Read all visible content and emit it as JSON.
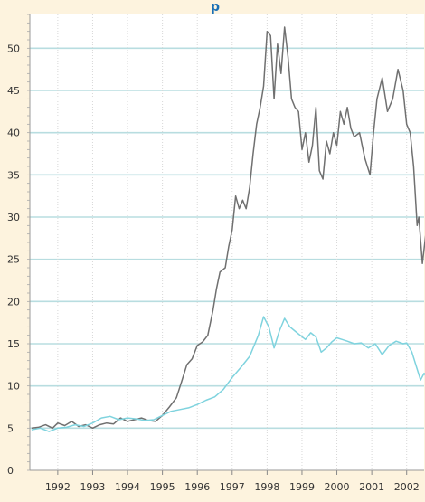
{
  "chart_data": {
    "type": "line",
    "title": "p",
    "xlabel": "",
    "ylabel": "",
    "xlim": [
      1991.2,
      2002.5
    ],
    "ylim": [
      0,
      54
    ],
    "x_ticks": [
      1992,
      1993,
      1994,
      1995,
      1996,
      1997,
      1998,
      1999,
      2000,
      2001,
      2002
    ],
    "y_ticks": [
      0,
      5,
      10,
      15,
      20,
      25,
      30,
      35,
      40,
      45,
      50
    ],
    "grid": true,
    "colors": {
      "background": "#fdf3de",
      "plot_background": "#ffffff",
      "grid": "#b8dde0",
      "series_dark": "#707070",
      "series_light": "#7fd3de",
      "title": "#1a6fb5"
    },
    "series": [
      {
        "color": "#707070",
        "points": [
          [
            1991.25,
            5.0
          ],
          [
            1991.45,
            5.1
          ],
          [
            1991.65,
            5.4
          ],
          [
            1991.85,
            5.0
          ],
          [
            1992.0,
            5.6
          ],
          [
            1992.2,
            5.3
          ],
          [
            1992.4,
            5.8
          ],
          [
            1992.6,
            5.2
          ],
          [
            1992.8,
            5.4
          ],
          [
            1993.0,
            5.0
          ],
          [
            1993.2,
            5.4
          ],
          [
            1993.4,
            5.6
          ],
          [
            1993.6,
            5.5
          ],
          [
            1993.8,
            6.2
          ],
          [
            1994.0,
            5.8
          ],
          [
            1994.2,
            6.0
          ],
          [
            1994.4,
            6.2
          ],
          [
            1994.6,
            5.9
          ],
          [
            1994.8,
            5.8
          ],
          [
            1995.0,
            6.5
          ],
          [
            1995.2,
            7.5
          ],
          [
            1995.4,
            8.6
          ],
          [
            1995.55,
            10.5
          ],
          [
            1995.7,
            12.5
          ],
          [
            1995.85,
            13.2
          ],
          [
            1996.0,
            14.8
          ],
          [
            1996.15,
            15.2
          ],
          [
            1996.3,
            16.0
          ],
          [
            1996.45,
            19.0
          ],
          [
            1996.55,
            21.5
          ],
          [
            1996.65,
            23.5
          ],
          [
            1996.8,
            24.0
          ],
          [
            1996.9,
            26.5
          ],
          [
            1997.0,
            28.5
          ],
          [
            1997.1,
            32.5
          ],
          [
            1997.2,
            31.0
          ],
          [
            1997.3,
            32.0
          ],
          [
            1997.4,
            31.0
          ],
          [
            1997.5,
            33.5
          ],
          [
            1997.6,
            37.5
          ],
          [
            1997.7,
            41.0
          ],
          [
            1997.8,
            43.0
          ],
          [
            1997.9,
            45.5
          ],
          [
            1998.0,
            52.0
          ],
          [
            1998.1,
            51.5
          ],
          [
            1998.2,
            44.0
          ],
          [
            1998.3,
            50.5
          ],
          [
            1998.4,
            47.0
          ],
          [
            1998.5,
            52.5
          ],
          [
            1998.6,
            49.0
          ],
          [
            1998.7,
            44.0
          ],
          [
            1998.8,
            43.0
          ],
          [
            1998.9,
            42.5
          ],
          [
            1999.0,
            38.0
          ],
          [
            1999.1,
            40.0
          ],
          [
            1999.2,
            36.5
          ],
          [
            1999.3,
            38.5
          ],
          [
            1999.4,
            43.0
          ],
          [
            1999.5,
            35.5
          ],
          [
            1999.6,
            34.5
          ],
          [
            1999.7,
            39.0
          ],
          [
            1999.8,
            37.5
          ],
          [
            1999.9,
            40.0
          ],
          [
            2000.0,
            38.5
          ],
          [
            2000.1,
            42.5
          ],
          [
            2000.2,
            41.0
          ],
          [
            2000.3,
            43.0
          ],
          [
            2000.4,
            40.5
          ],
          [
            2000.5,
            39.5
          ],
          [
            2000.65,
            40.0
          ],
          [
            2000.8,
            37.0
          ],
          [
            2000.95,
            35.0
          ],
          [
            2001.05,
            40.0
          ],
          [
            2001.15,
            44.0
          ],
          [
            2001.3,
            46.5
          ],
          [
            2001.45,
            42.5
          ],
          [
            2001.6,
            44.0
          ],
          [
            2001.75,
            47.5
          ],
          [
            2001.9,
            45.0
          ],
          [
            2002.0,
            41.0
          ],
          [
            2002.1,
            40.0
          ],
          [
            2002.2,
            36.0
          ],
          [
            2002.3,
            29.0
          ],
          [
            2002.35,
            30.0
          ],
          [
            2002.45,
            24.5
          ],
          [
            2002.55,
            28.0
          ]
        ]
      },
      {
        "color": "#7fd3de",
        "points": [
          [
            1991.25,
            4.8
          ],
          [
            1991.5,
            5.0
          ],
          [
            1991.75,
            4.6
          ],
          [
            1992.0,
            5.0
          ],
          [
            1992.25,
            5.1
          ],
          [
            1992.5,
            5.4
          ],
          [
            1992.75,
            5.2
          ],
          [
            1993.0,
            5.6
          ],
          [
            1993.25,
            6.2
          ],
          [
            1993.5,
            6.4
          ],
          [
            1993.75,
            6.0
          ],
          [
            1994.0,
            6.2
          ],
          [
            1994.25,
            6.1
          ],
          [
            1994.5,
            5.9
          ],
          [
            1994.75,
            6.0
          ],
          [
            1995.0,
            6.5
          ],
          [
            1995.25,
            7.0
          ],
          [
            1995.5,
            7.2
          ],
          [
            1995.75,
            7.4
          ],
          [
            1996.0,
            7.8
          ],
          [
            1996.25,
            8.3
          ],
          [
            1996.5,
            8.7
          ],
          [
            1996.75,
            9.6
          ],
          [
            1997.0,
            11.0
          ],
          [
            1997.25,
            12.2
          ],
          [
            1997.5,
            13.5
          ],
          [
            1997.75,
            16.0
          ],
          [
            1997.9,
            18.2
          ],
          [
            1998.05,
            17.0
          ],
          [
            1998.2,
            14.5
          ],
          [
            1998.35,
            16.5
          ],
          [
            1998.5,
            18.0
          ],
          [
            1998.65,
            17.0
          ],
          [
            1998.8,
            16.5
          ],
          [
            1998.95,
            16.0
          ],
          [
            1999.1,
            15.5
          ],
          [
            1999.25,
            16.3
          ],
          [
            1999.4,
            15.8
          ],
          [
            1999.55,
            14.0
          ],
          [
            1999.7,
            14.5
          ],
          [
            1999.85,
            15.2
          ],
          [
            2000.0,
            15.7
          ],
          [
            2000.15,
            15.5
          ],
          [
            2000.3,
            15.3
          ],
          [
            2000.5,
            15.0
          ],
          [
            2000.7,
            15.1
          ],
          [
            2000.9,
            14.5
          ],
          [
            2001.1,
            15.0
          ],
          [
            2001.3,
            13.7
          ],
          [
            2001.5,
            14.8
          ],
          [
            2001.7,
            15.3
          ],
          [
            2001.9,
            15.0
          ],
          [
            2002.0,
            15.1
          ],
          [
            2002.15,
            14.0
          ],
          [
            2002.3,
            12.0
          ],
          [
            2002.4,
            10.7
          ],
          [
            2002.5,
            11.5
          ],
          [
            2002.55,
            11.2
          ]
        ]
      }
    ]
  }
}
